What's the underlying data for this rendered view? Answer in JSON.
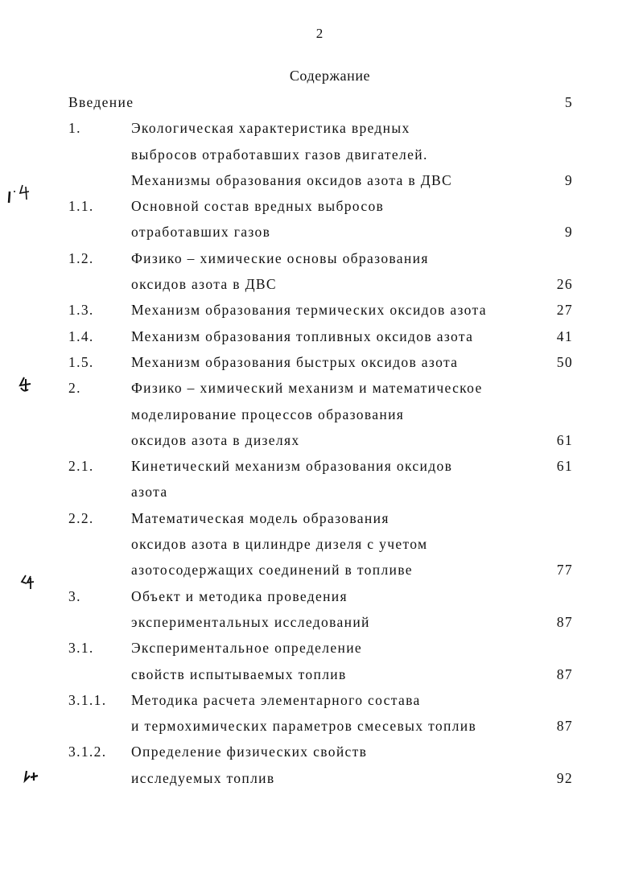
{
  "page_number": "2",
  "title": "Содержание",
  "entries": [
    {
      "num": "Введение",
      "lines": [
        ""
      ],
      "page": "5",
      "page_line": 0,
      "wide_num": true
    },
    {
      "num": "1.",
      "lines": [
        "Экологическая характеристика вредных",
        "выбросов отработавших газов двигателей.",
        "Механизмы образования оксидов азота в ДВС"
      ],
      "page": "9",
      "page_line": 2
    },
    {
      "num": "1.1.",
      "lines": [
        "Основной состав вредных выбросов",
        "отработавших газов"
      ],
      "page": "9",
      "page_line": 1
    },
    {
      "num": "1.2.",
      "lines": [
        "Физико – химические основы образования",
        "оксидов азота в ДВС"
      ],
      "page": "26",
      "page_line": 1
    },
    {
      "num": "1.3.",
      "lines": [
        "Механизм образования термических оксидов азота"
      ],
      "page": "27",
      "page_line": 0
    },
    {
      "num": "1.4.",
      "lines": [
        "Механизм образования топливных оксидов азота"
      ],
      "page": "41",
      "page_line": 0
    },
    {
      "num": "1.5.",
      "lines": [
        "Механизм образования быстрых оксидов азота"
      ],
      "page": "50",
      "page_line": 0
    },
    {
      "num": "2.",
      "lines": [
        "Физико – химический механизм и математическое",
        "моделирование процессов образования",
        "оксидов азота в дизелях"
      ],
      "page": "61",
      "page_line": 2
    },
    {
      "num": "2.1.",
      "lines": [
        "Кинетический механизм образования оксидов",
        " азота"
      ],
      "page": "61",
      "page_line": 0
    },
    {
      "num": "2.2.",
      "lines": [
        "Математическая модель образования",
        "оксидов азота в цилиндре дизеля с учетом",
        "азотосодержащих соединений в топливе"
      ],
      "page": "77",
      "page_line": 2
    },
    {
      "num": "3.",
      "lines": [
        "Объект и методика проведения",
        "экспериментальных исследований"
      ],
      "page": "87",
      "page_line": 1
    },
    {
      "num": "3.1.",
      "lines": [
        "Экспериментальное определение",
        "свойств испытываемых топлив"
      ],
      "page": "87",
      "page_line": 1
    },
    {
      "num": "3.1.1.",
      "lines": [
        "Методика расчета элементарного состава",
        "и термохимических параметров смесевых топлив"
      ],
      "page": "87",
      "page_line": 1
    },
    {
      "num": "3.1.2.",
      "lines": [
        "Определение физических свойств",
        "исследуемых топлив"
      ],
      "page": "92",
      "page_line": 1
    }
  ]
}
